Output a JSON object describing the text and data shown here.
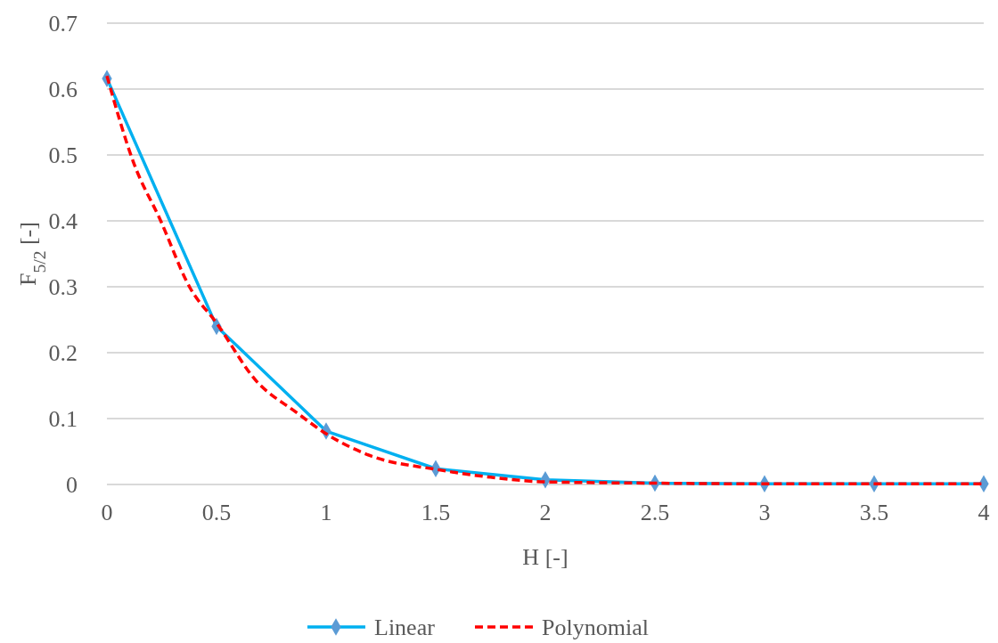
{
  "chart_data": {
    "type": "line",
    "xlabel": "H [-]",
    "ylabel": "F$_{5/2}$ [-]",
    "xlim": [
      0,
      4
    ],
    "xticks": [
      0,
      0.5,
      1,
      1.5,
      2,
      2.5,
      3,
      3.5,
      4
    ],
    "ylim": [
      0,
      0.7
    ],
    "yticks": [
      0,
      0.1,
      0.2,
      0.3,
      0.4,
      0.5,
      0.6,
      0.7
    ],
    "grid": "y",
    "legend": "bottom",
    "series": [
      {
        "name": "Linear",
        "color": "#00b0f0",
        "marker": "diamond",
        "line_style": "solid",
        "x": [
          0,
          0.5,
          1,
          1.5,
          2,
          2.5,
          3,
          3.5,
          4
        ],
        "values": [
          0.616,
          0.24,
          0.081,
          0.024,
          0.007,
          0.002,
          0.001,
          0.001,
          0.001
        ]
      },
      {
        "name": "Polynomial",
        "color": "#ff0000",
        "marker": "none",
        "line_style": "dashed",
        "x": [
          0,
          0.122,
          0.244,
          0.378,
          0.5,
          0.679,
          0.866,
          1,
          1.207,
          1.5,
          1.75,
          2,
          2.5,
          3,
          3.5,
          4
        ],
        "values": [
          0.62,
          0.488,
          0.401,
          0.299,
          0.245,
          0.158,
          0.109,
          0.077,
          0.043,
          0.023,
          0.011,
          0.004,
          0.002,
          0.001,
          0.001,
          0.001
        ]
      }
    ]
  }
}
